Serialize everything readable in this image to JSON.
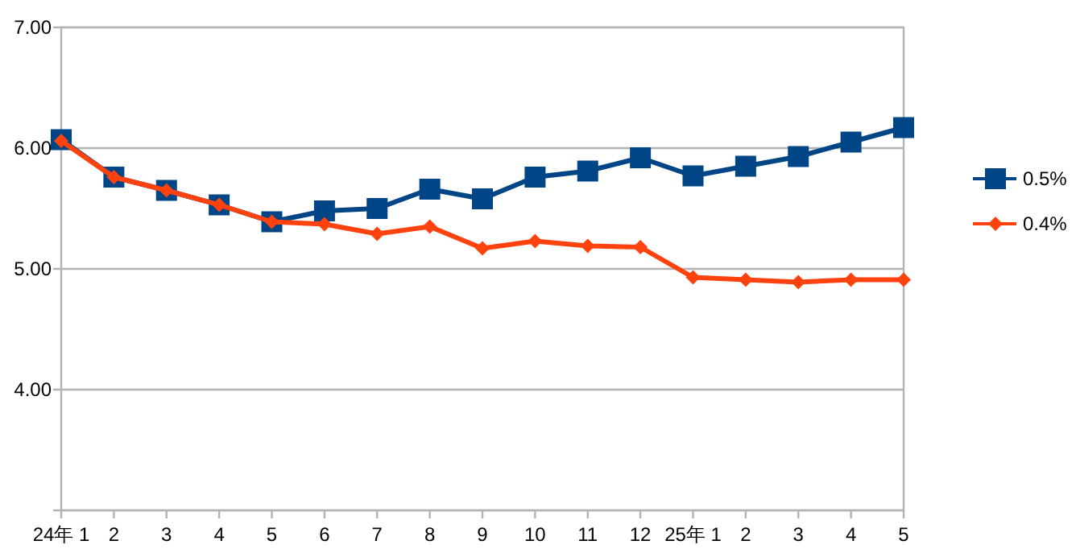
{
  "chart_data": {
    "type": "line",
    "categories": [
      "24年 1",
      "2",
      "3",
      "4",
      "5",
      "6",
      "7",
      "8",
      "9",
      "10",
      "11",
      "12",
      "25年 1",
      "2",
      "3",
      "4",
      "5"
    ],
    "series": [
      {
        "name": "0.5%",
        "color": "#004586",
        "marker": "square",
        "values": [
          6.07,
          5.76,
          5.65,
          5.53,
          5.39,
          5.48,
          5.5,
          5.66,
          5.58,
          5.76,
          5.81,
          5.92,
          5.77,
          5.85,
          5.93,
          6.05,
          6.17
        ]
      },
      {
        "name": "0.4%",
        "color": "#ff420e",
        "marker": "diamond",
        "values": [
          6.06,
          5.76,
          5.65,
          5.53,
          5.39,
          5.37,
          5.29,
          5.35,
          5.17,
          5.23,
          5.19,
          5.18,
          4.93,
          4.91,
          4.89,
          4.91,
          4.91
        ]
      }
    ],
    "ylim": [
      3,
      7
    ],
    "yticks": [
      {
        "value": 3,
        "label": null
      },
      {
        "value": 4,
        "label": "4.00"
      },
      {
        "value": 5,
        "label": "5.00"
      },
      {
        "value": 6,
        "label": "6.00"
      },
      {
        "value": 7,
        "label": "7.00"
      }
    ],
    "grid": "y",
    "legend": "right",
    "line_style": "solid"
  }
}
